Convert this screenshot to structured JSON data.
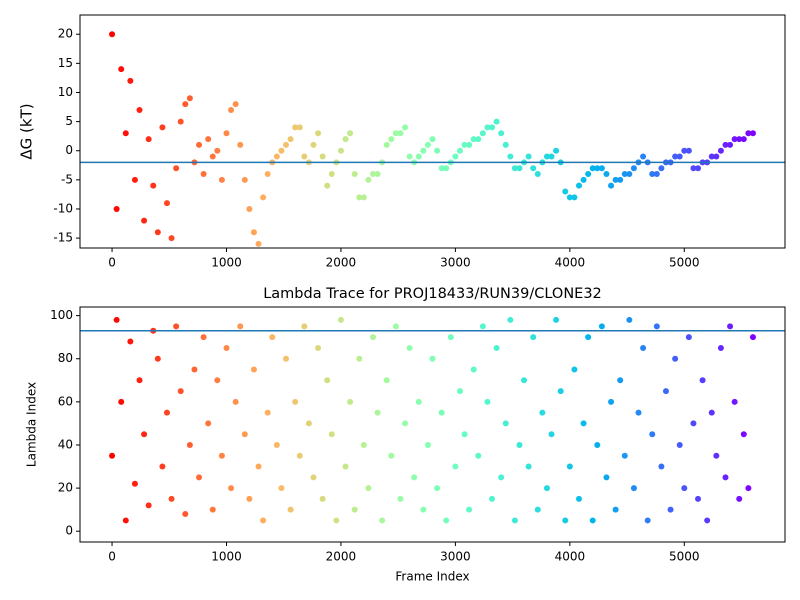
{
  "chart_data": [
    {
      "type": "scatter",
      "ylabel": "ΔG (kT)",
      "colormap": "rainbow_r",
      "hline": -2,
      "hline_color": "#1f77b4",
      "xlim": [
        -280,
        5880
      ],
      "ylim": [
        -16.7,
        23.3
      ],
      "xticks": [
        0,
        1000,
        2000,
        3000,
        4000,
        5000
      ],
      "yticks": [
        -15,
        -10,
        -5,
        0,
        5,
        10,
        15,
        20
      ],
      "x": [
        0,
        40,
        80,
        120,
        160,
        200,
        240,
        280,
        320,
        360,
        400,
        440,
        480,
        520,
        560,
        600,
        640,
        680,
        720,
        760,
        800,
        840,
        880,
        920,
        960,
        1000,
        1040,
        1080,
        1120,
        1160,
        1200,
        1240,
        1280,
        1320,
        1360,
        1400,
        1440,
        1480,
        1520,
        1560,
        1600,
        1640,
        1680,
        1720,
        1760,
        1800,
        1840,
        1880,
        1920,
        1960,
        2000,
        2040,
        2080,
        2120,
        2160,
        2200,
        2240,
        2280,
        2320,
        2360,
        2400,
        2440,
        2480,
        2520,
        2560,
        2600,
        2640,
        2680,
        2720,
        2760,
        2800,
        2840,
        2880,
        2920,
        2960,
        3000,
        3040,
        3080,
        3120,
        3160,
        3200,
        3240,
        3280,
        3320,
        3360,
        3400,
        3440,
        3480,
        3520,
        3560,
        3600,
        3640,
        3680,
        3720,
        3760,
        3800,
        3840,
        3880,
        3920,
        3960,
        4000,
        4040,
        4080,
        4120,
        4160,
        4200,
        4240,
        4280,
        4320,
        4360,
        4400,
        4440,
        4480,
        4520,
        4560,
        4600,
        4640,
        4680,
        4720,
        4760,
        4800,
        4840,
        4880,
        4920,
        4960,
        5000,
        5040,
        5080,
        5120,
        5160,
        5200,
        5240,
        5280,
        5320,
        5360,
        5400,
        5440,
        5480,
        5520,
        5560,
        5600
      ],
      "values": [
        20,
        -10,
        14,
        3,
        12,
        -5,
        7,
        -12,
        2,
        -6,
        -14,
        4,
        -9,
        -15,
        -3,
        5,
        8,
        9,
        -2,
        1,
        -4,
        2,
        -1,
        0,
        -5,
        3,
        7,
        8,
        1,
        -5,
        -10,
        -14,
        -16,
        -8,
        -4,
        -2,
        -1,
        0,
        1,
        2,
        4,
        4,
        -1,
        -2,
        1,
        3,
        -1,
        -6,
        -4,
        -2,
        0,
        2,
        3,
        -4,
        -8,
        -8,
        -5,
        -4,
        -4,
        -2,
        1,
        2,
        3,
        3,
        4,
        -1,
        -2,
        -1,
        0,
        1,
        2,
        0,
        -3,
        -3,
        -2,
        -1,
        0,
        1,
        1,
        2,
        2,
        3,
        4,
        4,
        5,
        3,
        1,
        -1,
        -3,
        -3,
        -2,
        -1,
        -3,
        -4,
        -2,
        -1,
        -1,
        0,
        -2,
        -7,
        -8,
        -8,
        -6,
        -5,
        -4,
        -3,
        -3,
        -3,
        -4,
        -6,
        -5,
        -5,
        -4,
        -4,
        -3,
        -2,
        -1,
        -2,
        -4,
        -4,
        -3,
        -2,
        -2,
        -1,
        -1,
        0,
        0,
        -3,
        -3,
        -2,
        -2,
        -1,
        -1,
        0,
        1,
        1,
        2,
        2,
        2,
        3,
        3
      ]
    },
    {
      "type": "scatter",
      "title": "Lambda Trace for PROJ18433/RUN39/CLONE32",
      "xlabel": "Frame Index",
      "ylabel": "Lambda Index",
      "colormap": "rainbow_r",
      "hline": 93,
      "hline_color": "#1f77b4",
      "xlim": [
        -280,
        5880
      ],
      "ylim": [
        -5,
        104
      ],
      "xticks": [
        0,
        1000,
        2000,
        3000,
        4000,
        5000
      ],
      "yticks": [
        0,
        20,
        40,
        60,
        80,
        100
      ],
      "x": [
        0,
        40,
        80,
        120,
        160,
        200,
        240,
        280,
        320,
        360,
        400,
        440,
        480,
        520,
        560,
        600,
        640,
        680,
        720,
        760,
        800,
        840,
        880,
        920,
        960,
        1000,
        1040,
        1080,
        1120,
        1160,
        1200,
        1240,
        1280,
        1320,
        1360,
        1400,
        1440,
        1480,
        1520,
        1560,
        1600,
        1640,
        1680,
        1720,
        1760,
        1800,
        1840,
        1880,
        1920,
        1960,
        2000,
        2040,
        2080,
        2120,
        2160,
        2200,
        2240,
        2280,
        2320,
        2360,
        2400,
        2440,
        2480,
        2520,
        2560,
        2600,
        2640,
        2680,
        2720,
        2760,
        2800,
        2840,
        2880,
        2920,
        2960,
        3000,
        3040,
        3080,
        3120,
        3160,
        3200,
        3240,
        3280,
        3320,
        3360,
        3400,
        3440,
        3480,
        3520,
        3560,
        3600,
        3640,
        3680,
        3720,
        3760,
        3800,
        3840,
        3880,
        3920,
        3960,
        4000,
        4040,
        4080,
        4120,
        4160,
        4200,
        4240,
        4280,
        4320,
        4360,
        4400,
        4440,
        4480,
        4520,
        4560,
        4600,
        4640,
        4680,
        4720,
        4760,
        4800,
        4840,
        4880,
        4920,
        4960,
        5000,
        5040,
        5080,
        5120,
        5160,
        5200,
        5240,
        5280,
        5320,
        5360,
        5400,
        5440,
        5480,
        5520,
        5560,
        5600
      ],
      "values": [
        35,
        98,
        60,
        5,
        88,
        22,
        70,
        45,
        12,
        93,
        80,
        30,
        55,
        15,
        95,
        65,
        8,
        40,
        75,
        25,
        90,
        50,
        10,
        70,
        35,
        85,
        20,
        60,
        95,
        45,
        15,
        75,
        30,
        5,
        55,
        90,
        40,
        20,
        80,
        10,
        60,
        35,
        95,
        50,
        25,
        85,
        15,
        70,
        45,
        5,
        98,
        30,
        60,
        10,
        80,
        40,
        20,
        90,
        55,
        5,
        70,
        35,
        95,
        15,
        50,
        85,
        25,
        60,
        10,
        40,
        80,
        20,
        55,
        5,
        90,
        30,
        65,
        45,
        10,
        75,
        35,
        95,
        60,
        15,
        85,
        25,
        50,
        98,
        5,
        40,
        70,
        30,
        90,
        10,
        55,
        20,
        45,
        98,
        65,
        5,
        30,
        75,
        15,
        50,
        90,
        5,
        40,
        95,
        25,
        60,
        10,
        70,
        35,
        98,
        20,
        55,
        85,
        5,
        45,
        95,
        30,
        65,
        10,
        80,
        40,
        20,
        90,
        50,
        15,
        70,
        5,
        55,
        35,
        85,
        25,
        95,
        60,
        15,
        45,
        20,
        90
      ]
    }
  ]
}
